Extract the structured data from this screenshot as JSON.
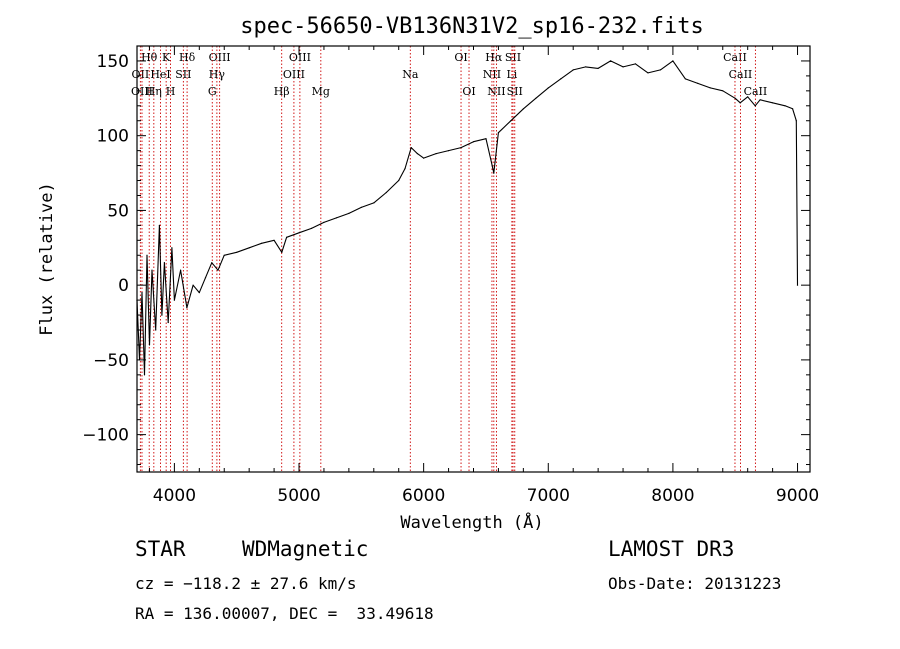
{
  "chart_data": {
    "type": "line",
    "title": "spec-56650-VB136N31V2_sp16-232.fits",
    "xlabel": "Wavelength (Å)",
    "ylabel": "Flux (relative)",
    "xlim": [
      3700,
      9100
    ],
    "ylim": [
      -125,
      160
    ],
    "x_ticks": [
      4000,
      5000,
      6000,
      7000,
      8000,
      9000
    ],
    "y_ticks": [
      -100,
      -50,
      0,
      50,
      100,
      150
    ],
    "grid": false,
    "series": [
      {
        "name": "flux",
        "color": "#000000",
        "x": [
          3700,
          3720,
          3740,
          3760,
          3780,
          3800,
          3820,
          3850,
          3880,
          3900,
          3920,
          3950,
          3980,
          4000,
          4050,
          4100,
          4150,
          4200,
          4250,
          4300,
          4350,
          4400,
          4500,
          4600,
          4700,
          4800,
          4862,
          4900,
          5000,
          5100,
          5200,
          5300,
          5400,
          5500,
          5600,
          5700,
          5800,
          5850,
          5900,
          5950,
          6000,
          6100,
          6200,
          6300,
          6400,
          6500,
          6550,
          6563,
          6600,
          6700,
          6800,
          6900,
          7000,
          7100,
          7200,
          7300,
          7400,
          7500,
          7600,
          7700,
          7800,
          7900,
          8000,
          8100,
          8200,
          8300,
          8400,
          8500,
          8540,
          8600,
          8660,
          8700,
          8800,
          8900,
          8960,
          8990,
          9000
        ],
        "y": [
          -10,
          -50,
          -5,
          -60,
          20,
          -40,
          10,
          -30,
          40,
          -20,
          15,
          -25,
          25,
          -10,
          10,
          -15,
          0,
          -5,
          5,
          15,
          10,
          20,
          22,
          25,
          28,
          30,
          22,
          32,
          35,
          38,
          42,
          45,
          48,
          52,
          55,
          62,
          70,
          78,
          92,
          88,
          85,
          88,
          90,
          92,
          96,
          98,
          80,
          75,
          102,
          110,
          118,
          125,
          132,
          138,
          144,
          146,
          145,
          150,
          146,
          148,
          142,
          144,
          150,
          138,
          135,
          132,
          130,
          125,
          122,
          126,
          120,
          124,
          122,
          120,
          118,
          110,
          0
        ]
      }
    ],
    "spectral_lines": [
      {
        "label": "Hθ",
        "x": 3798,
        "row": 1
      },
      {
        "label": "OII",
        "x": 3727,
        "row": 2
      },
      {
        "label": "OIII",
        "x": 3740,
        "row": 3
      },
      {
        "label": "HeI",
        "x": 3889,
        "row": 2
      },
      {
        "label": "Hη",
        "x": 3835,
        "row": 3
      },
      {
        "label": "K",
        "x": 3934,
        "row": 1
      },
      {
        "label": "H",
        "x": 3969,
        "row": 3
      },
      {
        "label": "SII",
        "x": 4072,
        "row": 2
      },
      {
        "label": "Hδ",
        "x": 4102,
        "row": 1
      },
      {
        "label": "OIII",
        "x": 4363,
        "row": 1
      },
      {
        "label": "Hγ",
        "x": 4341,
        "row": 2
      },
      {
        "label": "G",
        "x": 4304,
        "row": 3
      },
      {
        "label": "Hβ",
        "x": 4861,
        "row": 3
      },
      {
        "label": "OIII",
        "x": 4959,
        "row": 2
      },
      {
        "label": "OIII",
        "x": 5007,
        "row": 1
      },
      {
        "label": "Mg",
        "x": 5175,
        "row": 3
      },
      {
        "label": "Na",
        "x": 5893,
        "row": 2
      },
      {
        "label": "OI",
        "x": 6300,
        "row": 1
      },
      {
        "label": "OI",
        "x": 6364,
        "row": 3
      },
      {
        "label": "NII",
        "x": 6548,
        "row": 2
      },
      {
        "label": "NII",
        "x": 6584,
        "row": 3
      },
      {
        "label": "Hα",
        "x": 6563,
        "row": 1
      },
      {
        "label": "SII",
        "x": 6717,
        "row": 1
      },
      {
        "label": "Li",
        "x": 6708,
        "row": 2
      },
      {
        "label": "SII",
        "x": 6731,
        "row": 3
      },
      {
        "label": "CaII",
        "x": 8498,
        "row": 1
      },
      {
        "label": "CaII",
        "x": 8542,
        "row": 2
      },
      {
        "label": "CaII",
        "x": 8662,
        "row": 3
      }
    ]
  },
  "info": {
    "object_class": "STAR",
    "subclass": "WDMagnetic",
    "survey": "LAMOST DR3",
    "redshift": "cz = −118.2 ± 27.6 km/s",
    "obs_date": "Obs-Date: 20131223",
    "coords": "RA = 136.00007, DEC =  33.49618"
  },
  "colors": {
    "line_marker": "#cc0000",
    "spectrum": "#000000",
    "axes": "#000000",
    "background": "#ffffff"
  }
}
